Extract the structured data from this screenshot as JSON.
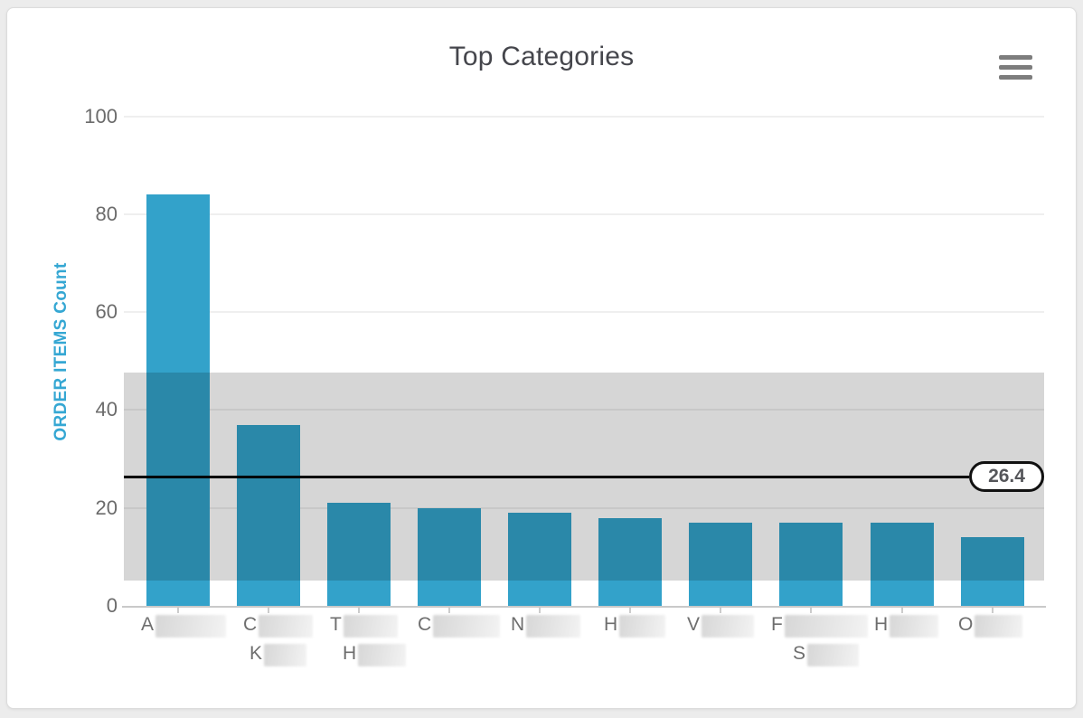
{
  "icons": {
    "menu": "hamburger-icon"
  },
  "chart_data": {
    "type": "bar",
    "title": "Top Categories",
    "xlabel": "",
    "ylabel": "ORDER ITEMS Count",
    "ylim": [
      0,
      100
    ],
    "yticks": [
      0,
      20,
      40,
      60,
      80,
      100
    ],
    "grid": true,
    "legend": false,
    "categories": [
      {
        "label_line1": "A",
        "label_line2": "",
        "redacted": true
      },
      {
        "label_line1": "C",
        "label_line2": "K",
        "redacted": true
      },
      {
        "label_line1": "T",
        "label_line2": "H",
        "redacted": true
      },
      {
        "label_line1": "C",
        "label_line2": "",
        "redacted": true
      },
      {
        "label_line1": "N",
        "label_line2": "",
        "redacted": true
      },
      {
        "label_line1": "H",
        "label_line2": "",
        "redacted": true
      },
      {
        "label_line1": "V",
        "label_line2": "",
        "redacted": true
      },
      {
        "label_line1": "F",
        "label_line2": "S",
        "redacted": true
      },
      {
        "label_line1": "H",
        "label_line2": "",
        "redacted": true
      },
      {
        "label_line1": "O",
        "label_line2": "",
        "redacted": true
      }
    ],
    "values": [
      84,
      37,
      21,
      20,
      19,
      18,
      17,
      17,
      17,
      14
    ],
    "average_line": {
      "value": 26.4,
      "label": "26.4",
      "color": "#000000"
    },
    "std_band": {
      "from": 5.2,
      "to": 47.6,
      "overlay_color": "rgba(0,0,0,0.16)"
    },
    "colors": {
      "bar": "#33a2ca",
      "bar_inside_band": "#2b89ab",
      "band_over_white": "#d6d6d6",
      "y_axis_title": "#35a7d3",
      "tick_text": "#6b6b6b",
      "title_text": "#45464c"
    }
  }
}
